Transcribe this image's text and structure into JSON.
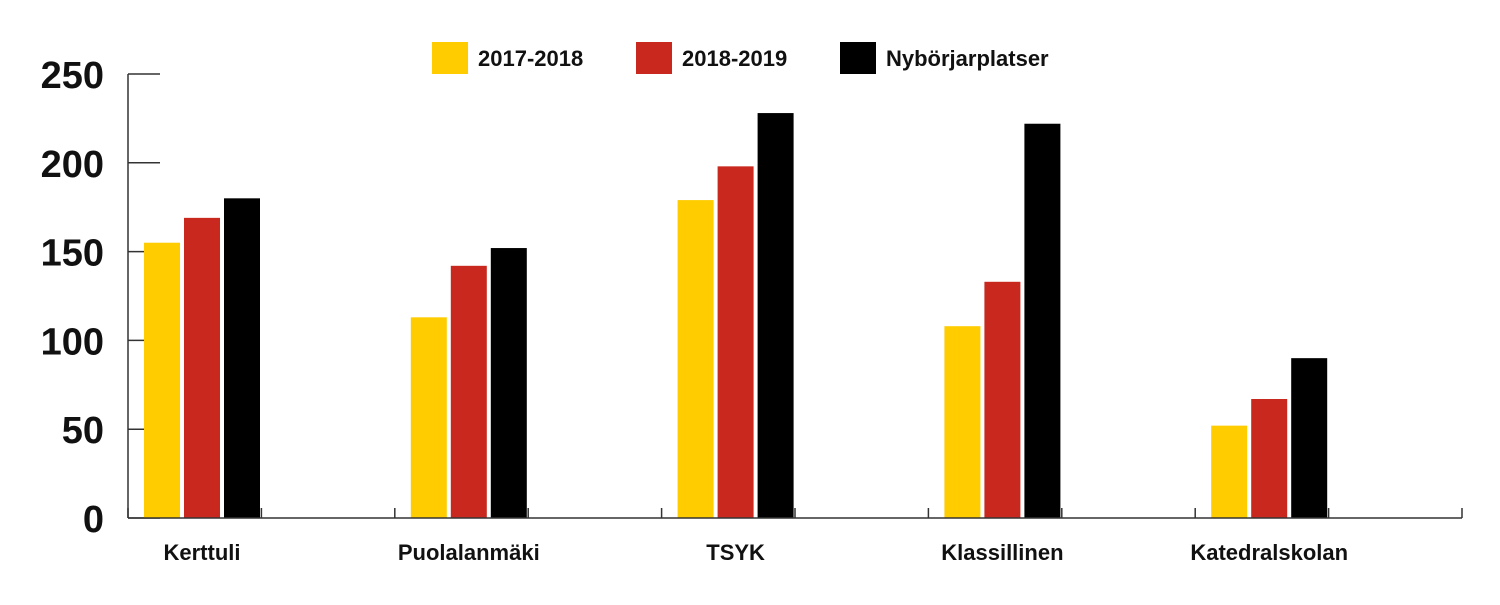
{
  "chart_data": {
    "type": "bar",
    "categories": [
      "Kerttuli",
      "Puolalanmäki",
      "TSYK",
      "Klassillinen",
      "Katedralskolan"
    ],
    "series": [
      {
        "name": "2017-2018",
        "color": "#FFCC00",
        "values": [
          155,
          113,
          179,
          108,
          52
        ]
      },
      {
        "name": "2018-2019",
        "color": "#C8281E",
        "values": [
          169,
          142,
          198,
          133,
          67
        ]
      },
      {
        "name": "Nybörjarplatser",
        "color": "#000000",
        "values": [
          180,
          152,
          228,
          222,
          90
        ]
      }
    ],
    "ylim": [
      0,
      250
    ],
    "yticks": [
      0,
      50,
      100,
      150,
      200,
      250
    ],
    "grid": false,
    "legend_position": "top-center"
  }
}
